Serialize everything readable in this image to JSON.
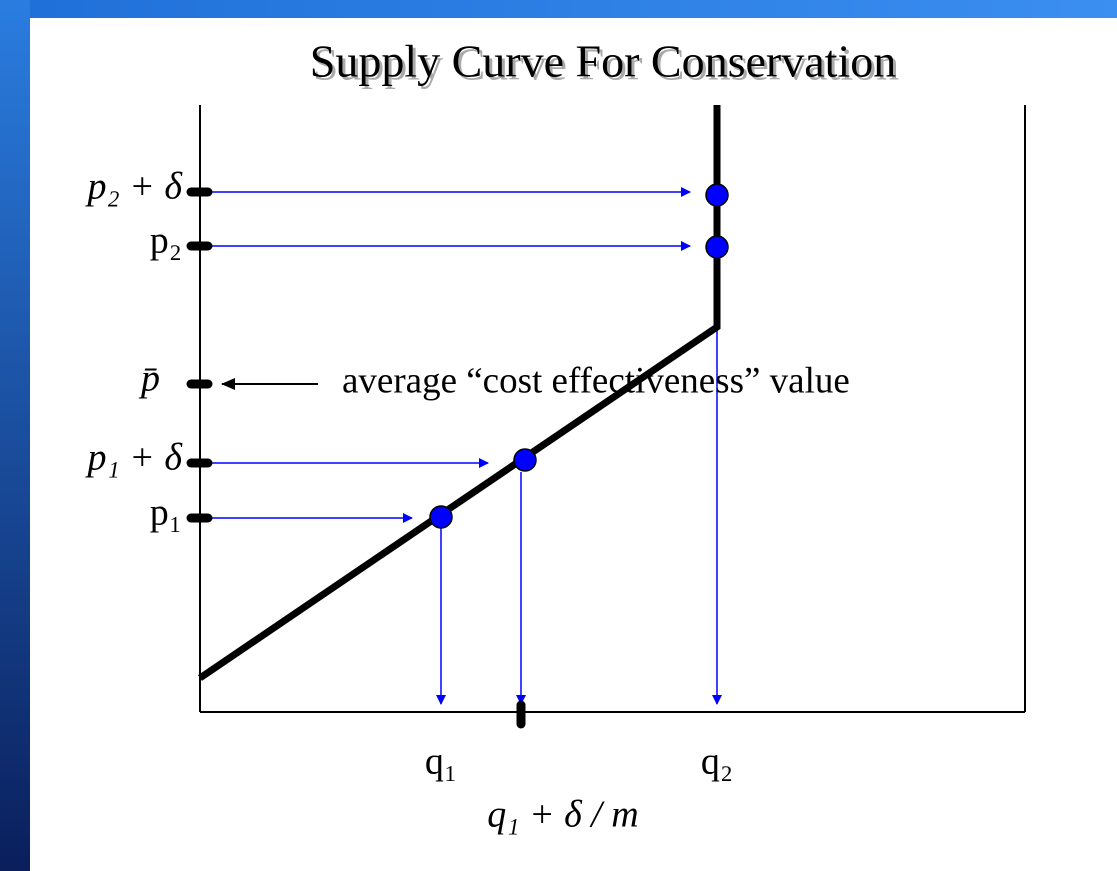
{
  "header": {
    "title": "Supply Curve For Conservation"
  },
  "y_labels": [
    "p₂ + δ",
    "p₂",
    "p̄",
    "p₁ + δ",
    "p₁"
  ],
  "x_labels": [
    "q₁",
    "q₂",
    "q₁ + δ / m"
  ],
  "annotation": "average “cost effectiveness” value"
}
